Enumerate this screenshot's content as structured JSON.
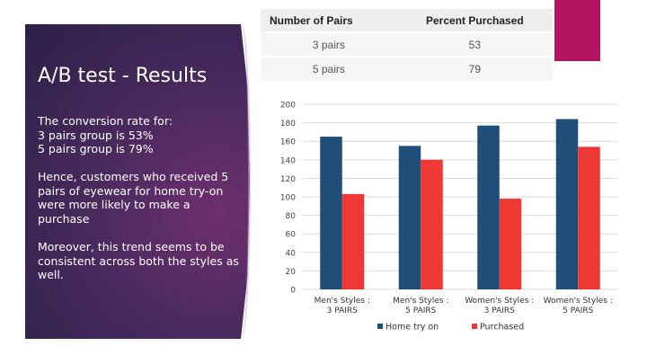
{
  "slide": {
    "title": "A/B test - Results",
    "paragraphs": [
      "The conversion rate for:\n3 pairs group is 53%\n5 pairs group is 79%",
      "Hence, customers who received 5 pairs of  eyewear for home try-on were more likely to make a purchase",
      "Moreover, this trend seems to be consistent across both the styles as well."
    ]
  },
  "table": {
    "headers": [
      "Number of Pairs",
      "Percent Purchased"
    ],
    "rows": [
      [
        "3 pairs",
        "53"
      ],
      [
        "5 pairs",
        "79"
      ]
    ]
  },
  "colors": {
    "home": "#1f4e79",
    "purchased": "#ee3834",
    "accent": "#b3145f"
  },
  "chart_data": {
    "type": "bar",
    "categories": [
      "Men's Styles :\n3 PAIRS",
      "Men's Styles :\n5 PAIRS",
      "Women's Styles :\n3 PAIRS",
      "Women's Styles :\n5 PAIRS"
    ],
    "series": [
      {
        "name": "Home try on",
        "values": [
          165,
          155,
          177,
          184
        ]
      },
      {
        "name": "Purchased",
        "values": [
          103,
          140,
          98,
          154
        ]
      }
    ],
    "ylim": [
      0,
      200
    ],
    "yticks": [
      0,
      20,
      40,
      60,
      80,
      100,
      120,
      140,
      160,
      180,
      200
    ],
    "grid": true,
    "legend": "bottom",
    "title": "",
    "xlabel": "",
    "ylabel": ""
  }
}
